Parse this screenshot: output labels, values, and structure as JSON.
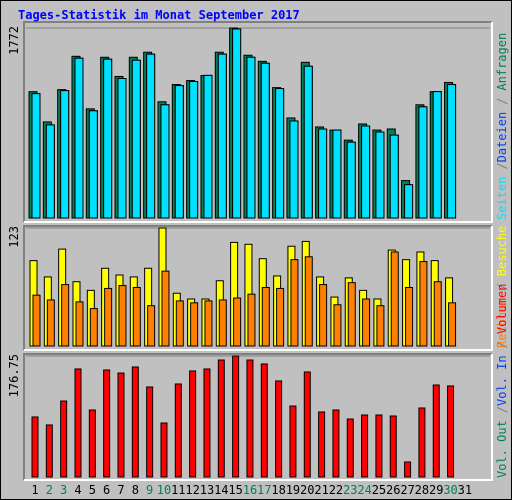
{
  "legend_separator": "/",
  "chart_data": [
    {
      "type": "bar",
      "title": "Tages-Statistik im Monat September 2017",
      "ylim": [
        0,
        1772
      ],
      "yticks": [
        1772
      ],
      "series": [
        {
          "name": "Anfragen",
          "color": "#00805c",
          "values": [
            1178,
            896,
            1197,
            1508,
            1018,
            1499,
            1320,
            1499,
            1546,
            1084,
            1245,
            1282,
            1329,
            1546,
            1772,
            1518,
            1461,
            1216,
            933,
            1452,
            849,
            820,
            726,
            877,
            820,
            830,
            349,
            1056,
            1178,
            1264,
            null
          ]
        },
        {
          "name": "Dateien",
          "color": "#0040ff",
          "values": [
            1160,
            868,
            1188,
            1490,
            1000,
            1481,
            1301,
            1471,
            1528,
            1056,
            1235,
            1273,
            1330,
            1528,
            1763,
            1499,
            1443,
            1207,
            905,
            1415,
            830,
            820,
            707,
            858,
            802,
            773,
            311,
            1037,
            1179,
            1245,
            null
          ]
        },
        {
          "name": "Seiten",
          "color": "#00e0ff",
          "values": [
            1160,
            868,
            1188,
            1490,
            1000,
            1481,
            1301,
            1471,
            1528,
            1056,
            1235,
            1273,
            1330,
            1528,
            1763,
            1499,
            1443,
            1207,
            905,
            1415,
            830,
            820,
            707,
            858,
            802,
            773,
            311,
            1037,
            1179,
            1245,
            null
          ]
        }
      ]
    },
    {
      "type": "bar",
      "ylim": [
        0,
        123
      ],
      "yticks": [
        123
      ],
      "series": [
        {
          "name": "Besuche",
          "color": "#ffff00",
          "values": [
            89,
            72,
            101,
            67,
            58,
            81,
            74,
            72,
            81,
            123,
            55,
            49,
            49,
            68,
            108,
            106,
            91,
            73,
            104,
            109,
            72,
            51,
            71,
            58,
            49,
            100,
            90,
            98,
            89,
            71,
            null
          ]
        },
        {
          "name": "Rechner",
          "color": "#ff8000",
          "values": [
            53,
            48,
            64,
            46,
            39,
            60,
            63,
            61,
            42,
            78,
            47,
            45,
            47,
            48,
            50,
            54,
            61,
            60,
            90,
            93,
            64,
            43,
            66,
            49,
            42,
            98,
            61,
            88,
            67,
            45,
            null
          ]
        }
      ]
    },
    {
      "type": "bar",
      "ylim": [
        0,
        176.75
      ],
      "yticks": [
        176.75
      ],
      "categories": [
        "1",
        "2",
        "3",
        "4",
        "5",
        "6",
        "7",
        "8",
        "9",
        "10",
        "11",
        "12",
        "13",
        "14",
        "15",
        "16",
        "17",
        "18",
        "19",
        "20",
        "21",
        "22",
        "23",
        "24",
        "25",
        "26",
        "27",
        "28",
        "29",
        "30",
        "31"
      ],
      "category_colors": [
        "#000000",
        "#00805c",
        "#00805c",
        "#000000",
        "#000000",
        "#000000",
        "#000000",
        "#000000",
        "#00805c",
        "#00805c",
        "#000000",
        "#000000",
        "#000000",
        "#000000",
        "#000000",
        "#00805c",
        "#00805c",
        "#000000",
        "#000000",
        "#000000",
        "#000000",
        "#000000",
        "#00805c",
        "#00805c",
        "#000000",
        "#000000",
        "#000000",
        "#000000",
        "#000000",
        "#00805c",
        "#000000"
      ],
      "series": [
        {
          "name": "Volumen",
          "color": "#ff0000",
          "values": [
            87.7,
            76.0,
            111.0,
            157.8,
            97.9,
            156.3,
            151.9,
            160.7,
            131.5,
            78.9,
            135.9,
            154.9,
            157.8,
            170.9,
            176.75,
            170.9,
            165.1,
            140.3,
            103.7,
            153.4,
            95.0,
            97.9,
            84.7,
            90.6,
            90.6,
            89.1,
            21.9,
            100.8,
            134.4,
            133.0,
            null
          ]
        },
        {
          "name": "Vol. In",
          "color": "#0040ff"
        },
        {
          "name": "Vol. Out",
          "color": "#00805c"
        }
      ]
    }
  ]
}
